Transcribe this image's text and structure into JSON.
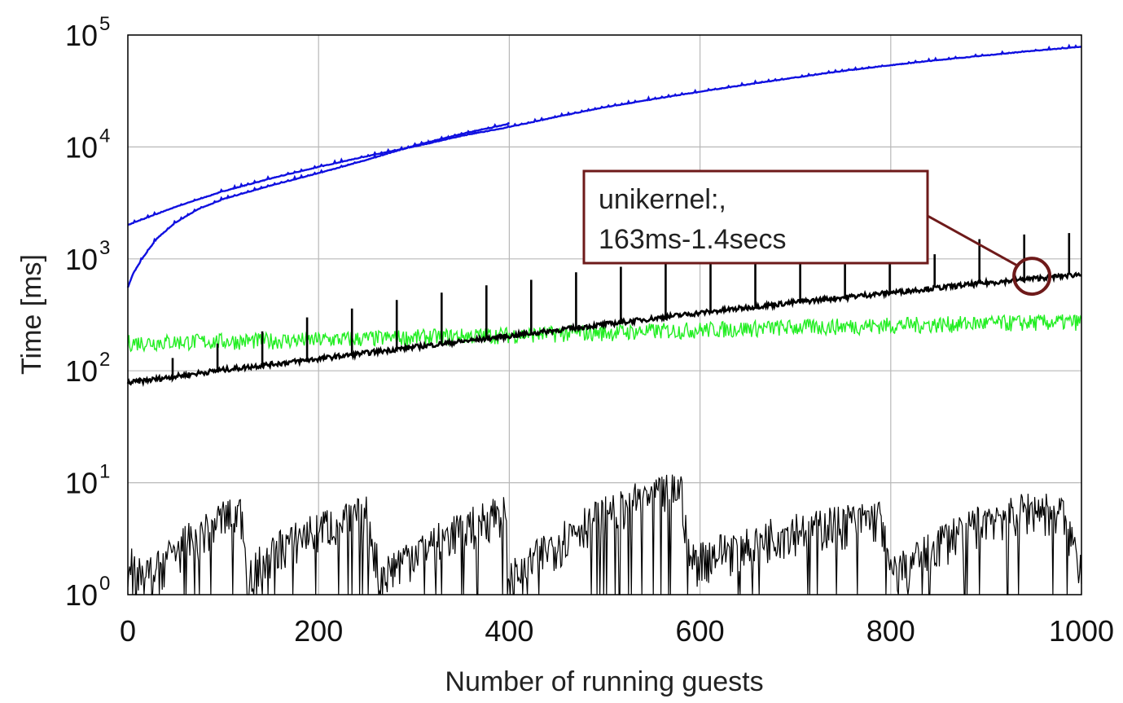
{
  "chart_data": {
    "type": "line",
    "title": "",
    "xlabel": "Number of running guests",
    "ylabel": "Time [ms]",
    "xlim": [
      0,
      1000
    ],
    "ylim": [
      1,
      100000
    ],
    "yscale": "log",
    "grid": true,
    "legend": "none",
    "x_ticks": [
      "0",
      "200",
      "400",
      "600",
      "800",
      "1000"
    ],
    "y_ticks": [
      {
        "base": "10",
        "exp": "0"
      },
      {
        "base": "10",
        "exp": "1"
      },
      {
        "base": "10",
        "exp": "2"
      },
      {
        "base": "10",
        "exp": "3"
      },
      {
        "base": "10",
        "exp": "4"
      },
      {
        "base": "10",
        "exp": "5"
      }
    ],
    "series": [
      {
        "color": "#1010e0",
        "x": [
          0,
          50,
          100,
          150,
          200,
          250,
          300,
          350,
          400,
          450,
          500,
          550,
          600,
          650,
          700,
          750,
          800,
          850,
          900,
          950,
          1000
        ],
        "y": [
          2000,
          2900,
          4000,
          5200,
          6600,
          8200,
          10000,
          12500,
          15000,
          18500,
          22500,
          26500,
          31000,
          36000,
          41500,
          47500,
          53500,
          59500,
          65500,
          72000,
          78000
        ]
      },
      {
        "color": "#1010e0",
        "x": [
          0,
          5,
          15,
          30,
          50,
          75,
          100,
          150,
          200,
          250,
          300,
          350,
          400
        ],
        "y": [
          550,
          720,
          1000,
          1500,
          2100,
          2800,
          3400,
          4500,
          5800,
          7600,
          10200,
          13000,
          16000
        ]
      },
      {
        "color": "#22ee22",
        "x": [
          0,
          100,
          200,
          300,
          400,
          500,
          600,
          700,
          800,
          900,
          1000
        ],
        "y": [
          175,
          180,
          185,
          195,
          205,
          215,
          228,
          240,
          250,
          260,
          268
        ]
      },
      {
        "color": "#000000",
        "x": [
          0,
          100,
          200,
          300,
          400,
          500,
          600,
          700,
          800,
          900,
          1000
        ],
        "y": [
          78,
          102,
          128,
          163,
          205,
          260,
          330,
          410,
          500,
          610,
          730
        ],
        "spikes_x": [
          47,
          94,
          141,
          188,
          235,
          282,
          329,
          376,
          423,
          470,
          517,
          564,
          611,
          658,
          705,
          752,
          799,
          846,
          893,
          940,
          987
        ],
        "spikes_y": [
          130,
          175,
          225,
          300,
          360,
          430,
          500,
          580,
          650,
          760,
          850,
          980,
          1000,
          1000,
          1000,
          1000,
          1000,
          1100,
          1500,
          1650,
          1700
        ]
      },
      {
        "color": "#000000",
        "x": [
          0,
          20,
          60,
          100,
          120,
          125,
          150,
          200,
          250,
          265,
          300,
          350,
          395,
          400,
          450,
          500,
          550,
          580,
          590,
          650,
          700,
          750,
          790,
          800,
          850,
          900,
          950,
          980,
          1000
        ],
        "y": [
          2,
          1.5,
          3,
          5,
          5.5,
          1.5,
          2.5,
          4,
          5.5,
          1.5,
          2.5,
          4,
          6,
          1.5,
          3,
          6,
          8,
          9,
          2,
          3,
          4,
          4.5,
          5,
          1.5,
          3,
          5,
          6,
          5.5,
          1.8
        ]
      }
    ],
    "annotations": [
      {
        "line1": "unikernel:,",
        "line2": "163ms-1.4secs",
        "target_x": 948,
        "target_y": 700,
        "color": "#6e1a1a"
      }
    ]
  }
}
